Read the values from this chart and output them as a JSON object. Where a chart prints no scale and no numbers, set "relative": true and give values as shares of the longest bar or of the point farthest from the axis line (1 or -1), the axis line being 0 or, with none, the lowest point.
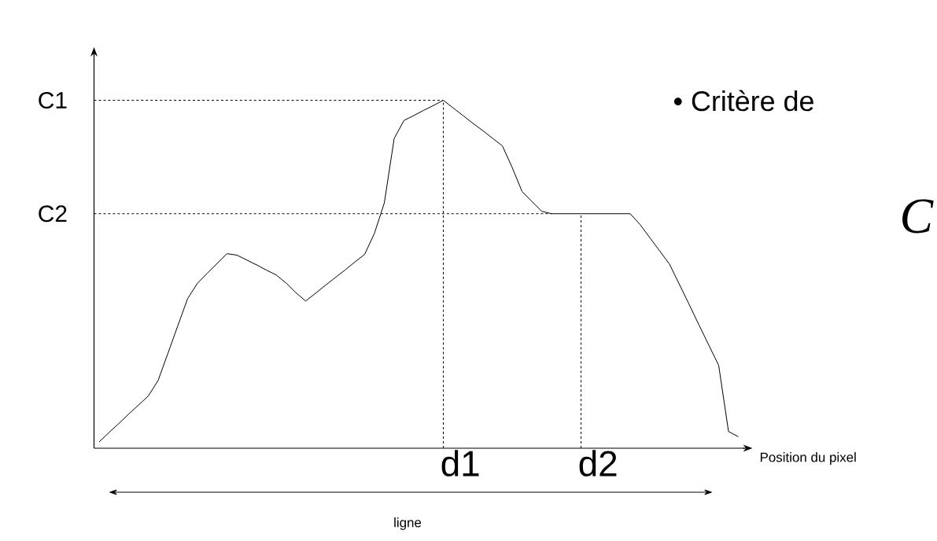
{
  "chart_data": {
    "type": "line",
    "relative": true,
    "xlabel": "Position du pixel",
    "color": "#000000",
    "categories": [
      null,
      null,
      null,
      null,
      null,
      null,
      null,
      null,
      null,
      null,
      null,
      null,
      null,
      null,
      null,
      null,
      null,
      null,
      null,
      null,
      null,
      null,
      null,
      null,
      null,
      null,
      null,
      null,
      null,
      null,
      null,
      null,
      null,
      null,
      null,
      null,
      null,
      null,
      null,
      null,
      null,
      null,
      null,
      null,
      null,
      null,
      null,
      null,
      null,
      null,
      null,
      null,
      null,
      null,
      null,
      null,
      null,
      null,
      null,
      null,
      null,
      null,
      null,
      null,
      null,
      null
    ],
    "values": [
      0.018,
      0.045,
      0.071,
      0.098,
      0.124,
      0.15,
      0.195,
      0.273,
      0.352,
      0.43,
      0.474,
      0.503,
      0.531,
      0.559,
      0.555,
      0.541,
      0.527,
      0.512,
      0.498,
      0.475,
      0.447,
      0.423,
      0.445,
      0.468,
      0.49,
      0.512,
      0.535,
      0.557,
      0.618,
      0.705,
      0.89,
      0.942,
      0.956,
      0.971,
      0.985,
      1,
      0.978,
      0.956,
      0.934,
      0.913,
      0.891,
      0.869,
      0.807,
      0.738,
      0.709,
      0.681,
      0.674,
      0.674,
      0.674,
      0.674,
      0.674,
      0.674,
      0.674,
      0.674,
      0.674,
      0.643,
      0.605,
      0.567,
      0.529,
      0.471,
      0.413,
      0.354,
      0.296,
      0.238,
      0.048,
      0.033
    ],
    "ref_lines": [
      {
        "axis": "y",
        "value": 1,
        "label": "C1",
        "line_style": "dashed"
      },
      {
        "axis": "y",
        "value": 0.674,
        "label": "C2",
        "line_style": "dashed"
      }
    ],
    "annotations": [
      "ligne",
      "• Critère de",
      "C",
      "d1",
      "d2"
    ]
  }
}
